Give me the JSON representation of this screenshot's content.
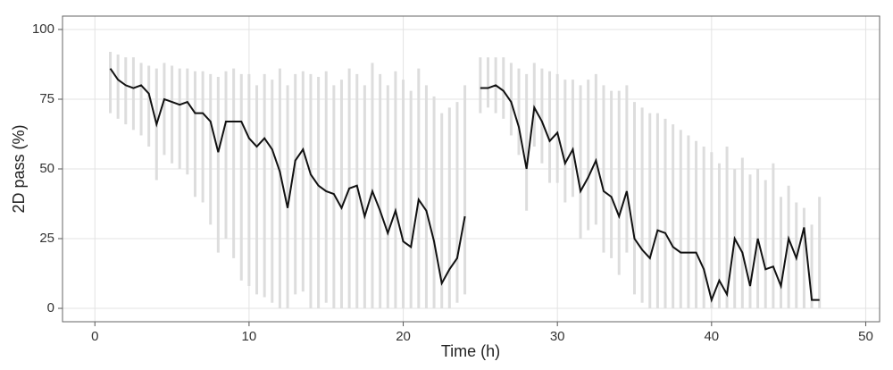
{
  "chart_data": {
    "type": "line",
    "x_label": "Time (h)",
    "y_label": "2D pass (%)",
    "xlim": [
      -2.1,
      50.9
    ],
    "ylim": [
      -4.8,
      104.8
    ],
    "xticks": [
      0,
      10,
      20,
      30,
      40,
      50
    ],
    "yticks": [
      0,
      25,
      50,
      75,
      100
    ],
    "grid": true,
    "x": [
      1,
      1.5,
      2,
      2.5,
      3,
      3.5,
      4,
      4.5,
      5,
      5.5,
      6,
      6.5,
      7,
      7.5,
      8,
      8.5,
      9,
      9.5,
      10,
      10.5,
      11,
      11.5,
      12,
      12.5,
      13,
      13.5,
      14,
      14.5,
      15,
      15.5,
      16,
      16.5,
      17,
      17.5,
      18,
      18.5,
      19,
      19.5,
      20,
      20.5,
      21,
      21.5,
      22,
      22.5,
      23,
      23.5,
      24,
      24.5,
      25,
      25.5,
      26,
      26.5,
      27,
      27.5,
      28,
      28.5,
      29,
      29.5,
      30,
      30.5,
      31,
      31.5,
      32,
      32.5,
      33,
      33.5,
      34,
      34.5,
      35,
      35.5,
      36,
      36.5,
      37,
      37.5,
      38,
      38.5,
      39,
      39.5,
      40,
      40.5,
      41,
      41.5,
      42,
      42.5,
      43,
      43.5,
      44,
      44.5,
      45,
      45.5,
      46,
      46.5,
      47
    ],
    "series": [
      {
        "color": "#111111",
        "values": [
          86,
          82,
          80,
          79,
          80,
          77,
          66,
          75,
          74,
          73,
          74,
          70,
          70,
          67,
          56,
          67,
          67,
          67,
          61,
          58,
          61,
          57,
          49,
          36,
          53,
          57,
          48,
          44,
          42,
          41,
          36,
          43,
          44,
          33,
          42,
          35,
          27,
          35,
          24,
          22,
          39,
          35,
          24,
          9,
          14,
          18,
          33,
          null,
          79,
          79,
          80,
          78,
          74,
          65,
          50,
          72,
          67,
          60,
          63,
          52,
          57,
          42,
          47,
          53,
          42,
          40,
          33,
          42,
          25,
          21,
          18,
          28,
          27,
          22,
          20,
          20,
          20,
          14,
          3,
          10,
          5,
          25,
          20,
          8,
          25,
          14,
          15,
          8,
          25,
          18,
          29,
          3,
          3
        ]
      }
    ],
    "ranges": {
      "color": "#dddddd",
      "low": [
        70,
        68,
        66,
        64,
        62,
        58,
        46,
        55,
        52,
        50,
        48,
        40,
        38,
        30,
        20,
        25,
        18,
        10,
        8,
        5,
        4,
        2,
        0,
        0,
        5,
        6,
        0,
        0,
        2,
        0,
        0,
        0,
        0,
        0,
        0,
        0,
        0,
        0,
        0,
        0,
        0,
        0,
        0,
        0,
        0,
        2,
        5,
        null,
        70,
        72,
        70,
        68,
        62,
        55,
        35,
        58,
        52,
        45,
        45,
        38,
        40,
        25,
        28,
        30,
        20,
        18,
        12,
        20,
        5,
        2,
        0,
        0,
        0,
        0,
        0,
        0,
        0,
        0,
        0,
        0,
        0,
        0,
        0,
        0,
        0,
        0,
        0,
        0,
        0,
        0,
        0,
        0,
        0
      ],
      "high": [
        92,
        91,
        90,
        90,
        88,
        87,
        86,
        88,
        87,
        86,
        86,
        85,
        85,
        84,
        83,
        85,
        86,
        84,
        84,
        80,
        84,
        82,
        86,
        80,
        84,
        85,
        84,
        83,
        85,
        80,
        82,
        86,
        84,
        80,
        88,
        84,
        80,
        85,
        82,
        78,
        86,
        80,
        76,
        70,
        72,
        74,
        80,
        null,
        90,
        90,
        90,
        90,
        88,
        86,
        84,
        88,
        86,
        85,
        84,
        82,
        82,
        80,
        82,
        84,
        80,
        78,
        78,
        80,
        74,
        72,
        70,
        70,
        68,
        66,
        64,
        62,
        60,
        58,
        56,
        52,
        58,
        50,
        54,
        48,
        50,
        46,
        52,
        40,
        44,
        38,
        36,
        30,
        40
      ]
    }
  }
}
